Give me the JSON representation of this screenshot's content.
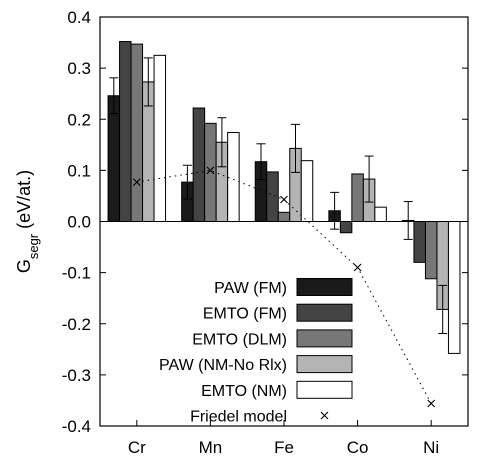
{
  "chart_data": {
    "type": "bar",
    "ylabel": "G",
    "ylabel_sub": "segr",
    "ylabel_unit": " (eV/at.)",
    "ylim": [
      -0.4,
      0.4
    ],
    "yticks": [
      "0.4",
      "0.3",
      "0.2",
      "0.1",
      "0.0",
      "-0.1",
      "-0.2",
      "-0.3",
      "-0.4"
    ],
    "ytick_values": [
      0.4,
      0.3,
      0.2,
      0.1,
      0.0,
      -0.1,
      -0.2,
      -0.3,
      -0.4
    ],
    "categories": [
      "Cr",
      "Mn",
      "Fe",
      "Co",
      "Ni"
    ],
    "grid": false,
    "legend_position": "bottom-left",
    "series": [
      {
        "name": "PAW (FM)",
        "color": "#1a1a1a",
        "values": [
          0.246,
          0.077,
          0.117,
          0.021,
          0.002
        ],
        "errors": [
          0.035,
          0.033,
          0.035,
          0.036,
          0.037
        ]
      },
      {
        "name": "EMTO (FM)",
        "color": "#444444",
        "values": [
          0.352,
          0.222,
          0.097,
          -0.022,
          -0.08
        ],
        "errors": [
          null,
          null,
          null,
          null,
          null
        ]
      },
      {
        "name": "EMTO (DLM)",
        "color": "#777777",
        "values": [
          0.347,
          0.192,
          0.018,
          0.093,
          -0.112
        ],
        "errors": [
          null,
          null,
          null,
          null,
          null
        ]
      },
      {
        "name": "PAW (NM-No Rlx)",
        "color": "#b4b4b4",
        "values": [
          0.273,
          0.155,
          0.143,
          0.083,
          -0.172
        ],
        "errors": [
          0.047,
          0.048,
          0.047,
          0.045,
          0.047
        ]
      },
      {
        "name": "EMTO (NM)",
        "color": "#ffffff",
        "values": [
          0.325,
          0.174,
          0.119,
          0.028,
          -0.258
        ],
        "errors": [
          null,
          null,
          null,
          null,
          null
        ]
      }
    ],
    "friedel": {
      "name": "Friedel model",
      "points": [
        {
          "x": "Cr",
          "y": 0.077
        },
        {
          "x": "Mn",
          "y": 0.1
        },
        {
          "x": "Fe",
          "y": 0.043
        },
        {
          "x": "Co",
          "y": -0.09
        },
        {
          "x": "Ni",
          "y": -0.356
        }
      ]
    }
  }
}
